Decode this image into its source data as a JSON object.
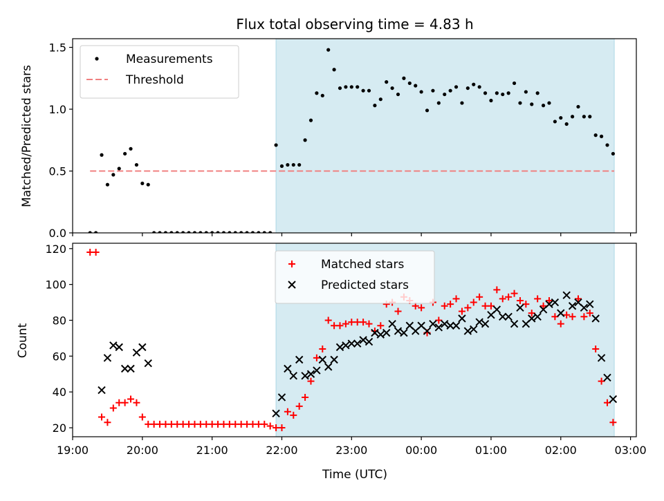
{
  "title": "Flux total observing time = 4.83 h",
  "chart_data": [
    {
      "type": "scatter",
      "ylabel": "Matched/Predicted stars",
      "xlim": [
        "19:00",
        "03:05"
      ],
      "ylim": [
        0,
        1.57
      ],
      "yticks": [
        0.0,
        0.5,
        1.0,
        1.5
      ],
      "ytick_labels": [
        "0.0",
        "0.5",
        "1.0",
        "1.5"
      ],
      "shaded_span": [
        "21:55",
        "02:46"
      ],
      "legend": {
        "placement": "top-left",
        "labels": [
          "Measurements",
          "Threshold"
        ]
      },
      "threshold": {
        "value": 0.5,
        "from": "19:15",
        "to": "02:46",
        "color": "#f08080"
      },
      "series": [
        {
          "name": "Measurements",
          "color": "#000000",
          "points": [
            [
              "19:15",
              0.0
            ],
            [
              "19:20",
              0.0
            ],
            [
              "19:25",
              0.63
            ],
            [
              "19:30",
              0.39
            ],
            [
              "19:35",
              0.47
            ],
            [
              "19:40",
              0.52
            ],
            [
              "19:45",
              0.64
            ],
            [
              "19:50",
              0.68
            ],
            [
              "19:55",
              0.55
            ],
            [
              "20:00",
              0.4
            ],
            [
              "20:05",
              0.39
            ],
            [
              "20:10",
              0.0
            ],
            [
              "20:15",
              0.0
            ],
            [
              "20:20",
              0.0
            ],
            [
              "20:25",
              0.0
            ],
            [
              "20:30",
              0.0
            ],
            [
              "20:35",
              0.0
            ],
            [
              "20:40",
              0.0
            ],
            [
              "20:45",
              0.0
            ],
            [
              "20:50",
              0.0
            ],
            [
              "20:55",
              0.0
            ],
            [
              "21:00",
              0.0
            ],
            [
              "21:05",
              0.0
            ],
            [
              "21:10",
              0.0
            ],
            [
              "21:15",
              0.0
            ],
            [
              "21:20",
              0.0
            ],
            [
              "21:25",
              0.0
            ],
            [
              "21:30",
              0.0
            ],
            [
              "21:35",
              0.0
            ],
            [
              "21:40",
              0.0
            ],
            [
              "21:45",
              0.0
            ],
            [
              "21:50",
              0.0
            ],
            [
              "21:55",
              0.71
            ],
            [
              "22:00",
              0.54
            ],
            [
              "22:05",
              0.55
            ],
            [
              "22:10",
              0.55
            ],
            [
              "22:15",
              0.55
            ],
            [
              "22:20",
              0.75
            ],
            [
              "22:25",
              0.91
            ],
            [
              "22:30",
              1.13
            ],
            [
              "22:35",
              1.11
            ],
            [
              "22:40",
              1.48
            ],
            [
              "22:45",
              1.32
            ],
            [
              "22:50",
              1.17
            ],
            [
              "22:55",
              1.18
            ],
            [
              "23:00",
              1.18
            ],
            [
              "23:05",
              1.18
            ],
            [
              "23:10",
              1.15
            ],
            [
              "23:15",
              1.15
            ],
            [
              "23:20",
              1.03
            ],
            [
              "23:25",
              1.08
            ],
            [
              "23:30",
              1.22
            ],
            [
              "23:35",
              1.17
            ],
            [
              "23:40",
              1.12
            ],
            [
              "23:45",
              1.25
            ],
            [
              "23:50",
              1.21
            ],
            [
              "23:55",
              1.19
            ],
            [
              "00:00",
              1.14
            ],
            [
              "00:05",
              0.99
            ],
            [
              "00:10",
              1.15
            ],
            [
              "00:15",
              1.05
            ],
            [
              "00:20",
              1.12
            ],
            [
              "00:25",
              1.15
            ],
            [
              "00:30",
              1.18
            ],
            [
              "00:35",
              1.05
            ],
            [
              "00:40",
              1.17
            ],
            [
              "00:45",
              1.2
            ],
            [
              "00:50",
              1.18
            ],
            [
              "00:55",
              1.13
            ],
            [
              "01:00",
              1.07
            ],
            [
              "01:05",
              1.13
            ],
            [
              "01:10",
              1.12
            ],
            [
              "01:15",
              1.13
            ],
            [
              "01:20",
              1.21
            ],
            [
              "01:25",
              1.05
            ],
            [
              "01:30",
              1.14
            ],
            [
              "01:35",
              1.04
            ],
            [
              "01:40",
              1.13
            ],
            [
              "01:45",
              1.03
            ],
            [
              "01:50",
              1.05
            ],
            [
              "01:55",
              0.9
            ],
            [
              "02:00",
              0.93
            ],
            [
              "02:05",
              0.88
            ],
            [
              "02:10",
              0.94
            ],
            [
              "02:15",
              1.02
            ],
            [
              "02:20",
              0.94
            ],
            [
              "02:25",
              0.94
            ],
            [
              "02:30",
              0.79
            ],
            [
              "02:35",
              0.78
            ],
            [
              "02:40",
              0.71
            ],
            [
              "02:45",
              0.64
            ]
          ]
        }
      ]
    },
    {
      "type": "scatter",
      "xlabel": "Time (UTC)",
      "ylabel": "Count",
      "xlim": [
        "19:00",
        "03:05"
      ],
      "xticks": [
        "19:00",
        "20:00",
        "21:00",
        "22:00",
        "23:00",
        "00:00",
        "01:00",
        "02:00",
        "03:00"
      ],
      "ylim": [
        15,
        123
      ],
      "yticks": [
        20,
        40,
        60,
        80,
        100,
        120
      ],
      "shaded_span": [
        "21:55",
        "02:46"
      ],
      "legend": {
        "placement": "top-center",
        "labels": [
          "Matched stars",
          "Predicted stars"
        ]
      },
      "series": [
        {
          "name": "Matched stars",
          "marker": "plus",
          "color": "#ff0000",
          "points": [
            [
              "19:15",
              118
            ],
            [
              "19:20",
              118
            ],
            [
              "19:25",
              26
            ],
            [
              "19:30",
              23
            ],
            [
              "19:35",
              31
            ],
            [
              "19:40",
              34
            ],
            [
              "19:45",
              34
            ],
            [
              "19:50",
              36
            ],
            [
              "19:55",
              34
            ],
            [
              "20:00",
              26
            ],
            [
              "20:05",
              22
            ],
            [
              "20:10",
              22
            ],
            [
              "20:15",
              22
            ],
            [
              "20:20",
              22
            ],
            [
              "20:25",
              22
            ],
            [
              "20:30",
              22
            ],
            [
              "20:35",
              22
            ],
            [
              "20:40",
              22
            ],
            [
              "20:45",
              22
            ],
            [
              "20:50",
              22
            ],
            [
              "20:55",
              22
            ],
            [
              "21:00",
              22
            ],
            [
              "21:05",
              22
            ],
            [
              "21:10",
              22
            ],
            [
              "21:15",
              22
            ],
            [
              "21:20",
              22
            ],
            [
              "21:25",
              22
            ],
            [
              "21:30",
              22
            ],
            [
              "21:35",
              22
            ],
            [
              "21:40",
              22
            ],
            [
              "21:45",
              22
            ],
            [
              "21:50",
              21
            ],
            [
              "21:55",
              20
            ],
            [
              "22:00",
              20
            ],
            [
              "22:05",
              29
            ],
            [
              "22:10",
              27
            ],
            [
              "22:15",
              32
            ],
            [
              "22:20",
              37
            ],
            [
              "22:25",
              46
            ],
            [
              "22:30",
              59
            ],
            [
              "22:35",
              64
            ],
            [
              "22:40",
              80
            ],
            [
              "22:45",
              77
            ],
            [
              "22:50",
              77
            ],
            [
              "22:55",
              78
            ],
            [
              "23:00",
              79
            ],
            [
              "23:05",
              79
            ],
            [
              "23:10",
              79
            ],
            [
              "23:15",
              78
            ],
            [
              "23:20",
              74
            ],
            [
              "23:25",
              77
            ],
            [
              "23:30",
              89
            ],
            [
              "23:35",
              90
            ],
            [
              "23:40",
              85
            ],
            [
              "23:45",
              93
            ],
            [
              "23:50",
              91
            ],
            [
              "23:55",
              88
            ],
            [
              "00:00",
              87
            ],
            [
              "00:05",
              73
            ],
            [
              "00:10",
              90
            ],
            [
              "00:15",
              80
            ],
            [
              "00:20",
              88
            ],
            [
              "00:25",
              89
            ],
            [
              "00:30",
              92
            ],
            [
              "00:35",
              85
            ],
            [
              "00:40",
              87
            ],
            [
              "00:45",
              90
            ],
            [
              "00:50",
              93
            ],
            [
              "00:55",
              88
            ],
            [
              "01:00",
              88
            ],
            [
              "01:05",
              97
            ],
            [
              "01:10",
              92
            ],
            [
              "01:15",
              93
            ],
            [
              "01:20",
              95
            ],
            [
              "01:25",
              91
            ],
            [
              "01:30",
              89
            ],
            [
              "01:35",
              84
            ],
            [
              "01:40",
              92
            ],
            [
              "01:45",
              88
            ],
            [
              "01:50",
              91
            ],
            [
              "01:55",
              82
            ],
            [
              "02:00",
              78
            ],
            [
              "02:05",
              83
            ],
            [
              "02:10",
              82
            ],
            [
              "02:15",
              92
            ],
            [
              "02:20",
              82
            ],
            [
              "02:25",
              84
            ],
            [
              "02:30",
              64
            ],
            [
              "02:35",
              46
            ],
            [
              "02:40",
              34
            ],
            [
              "02:45",
              23
            ]
          ]
        },
        {
          "name": "Predicted stars",
          "marker": "x",
          "color": "#000000",
          "points": [
            [
              "19:25",
              41
            ],
            [
              "19:30",
              59
            ],
            [
              "19:35",
              66
            ],
            [
              "19:40",
              65
            ],
            [
              "19:45",
              53
            ],
            [
              "19:50",
              53
            ],
            [
              "19:55",
              62
            ],
            [
              "20:00",
              65
            ],
            [
              "20:05",
              56
            ],
            [
              "21:55",
              28
            ],
            [
              "22:00",
              37
            ],
            [
              "22:05",
              53
            ],
            [
              "22:10",
              49
            ],
            [
              "22:15",
              58
            ],
            [
              "22:20",
              49
            ],
            [
              "22:25",
              50
            ],
            [
              "22:30",
              52
            ],
            [
              "22:35",
              58
            ],
            [
              "22:40",
              54
            ],
            [
              "22:45",
              58
            ],
            [
              "22:50",
              65
            ],
            [
              "22:55",
              66
            ],
            [
              "23:00",
              67
            ],
            [
              "23:05",
              67
            ],
            [
              "23:10",
              69
            ],
            [
              "23:15",
              68
            ],
            [
              "23:20",
              73
            ],
            [
              "23:25",
              72
            ],
            [
              "23:30",
              73
            ],
            [
              "23:35",
              78
            ],
            [
              "23:40",
              74
            ],
            [
              "23:45",
              73
            ],
            [
              "23:50",
              77
            ],
            [
              "23:55",
              74
            ],
            [
              "00:00",
              77
            ],
            [
              "00:05",
              74
            ],
            [
              "00:10",
              78
            ],
            [
              "00:15",
              76
            ],
            [
              "00:20",
              78
            ],
            [
              "00:25",
              77
            ],
            [
              "00:30",
              77
            ],
            [
              "00:35",
              81
            ],
            [
              "00:40",
              74
            ],
            [
              "00:45",
              75
            ],
            [
              "00:50",
              79
            ],
            [
              "00:55",
              78
            ],
            [
              "01:00",
              83
            ],
            [
              "01:05",
              86
            ],
            [
              "01:10",
              82
            ],
            [
              "01:15",
              82
            ],
            [
              "01:20",
              78
            ],
            [
              "01:25",
              87
            ],
            [
              "01:30",
              78
            ],
            [
              "01:35",
              81
            ],
            [
              "01:40",
              82
            ],
            [
              "01:45",
              86
            ],
            [
              "01:50",
              89
            ],
            [
              "01:55",
              90
            ],
            [
              "02:00",
              84
            ],
            [
              "02:05",
              94
            ],
            [
              "02:10",
              88
            ],
            [
              "02:15",
              90
            ],
            [
              "02:20",
              87
            ],
            [
              "02:25",
              89
            ],
            [
              "02:30",
              81
            ],
            [
              "02:35",
              59
            ],
            [
              "02:40",
              48
            ],
            [
              "02:45",
              36
            ]
          ]
        }
      ]
    }
  ]
}
